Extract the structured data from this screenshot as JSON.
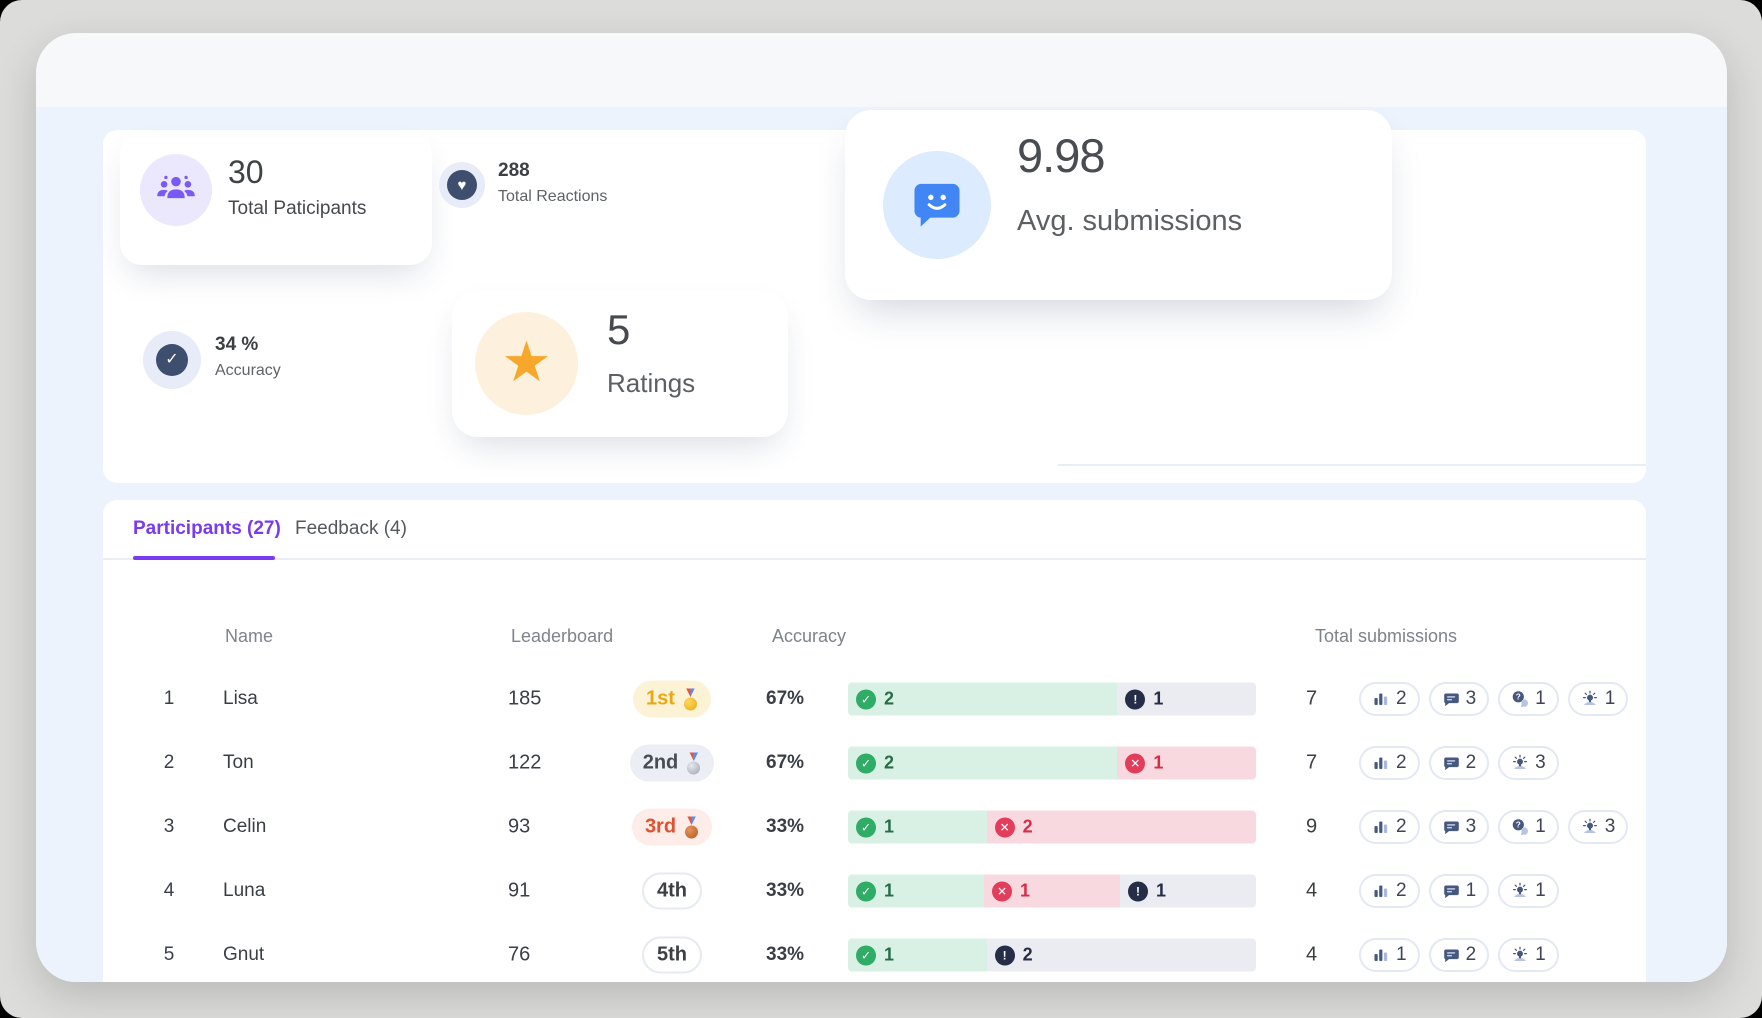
{
  "stats": {
    "participants": {
      "value": "30",
      "label": "Total Paticipants"
    },
    "reactions": {
      "value": "288",
      "label": "Total Reactions"
    },
    "avg_submissions": {
      "value": "9.98",
      "label": "Avg. submissions"
    },
    "accuracy": {
      "value": "34 %",
      "label": "Accuracy"
    },
    "ratings": {
      "value": "5",
      "label": "Ratings"
    }
  },
  "tabs": [
    {
      "label": "Participants (27)",
      "active": true
    },
    {
      "label": "Feedback (4)",
      "active": false
    }
  ],
  "table": {
    "headers": {
      "name": "Name",
      "leaderboard": "Leaderboard",
      "accuracy": "Accuracy",
      "total": "Total submissions"
    },
    "rows": [
      {
        "rank": "1",
        "name": "Lisa",
        "score": "185",
        "place": "1st",
        "medal": "gold",
        "accuracy": "67%",
        "segments": [
          {
            "type": "success",
            "count": "2",
            "flex": 2
          },
          {
            "type": "neutral",
            "count": "1",
            "flex": 1
          }
        ],
        "total": "7",
        "pills": [
          {
            "icon": "poll",
            "count": "2"
          },
          {
            "icon": "comment",
            "count": "3"
          },
          {
            "icon": "question",
            "count": "1"
          },
          {
            "icon": "idea",
            "count": "1"
          }
        ]
      },
      {
        "rank": "2",
        "name": "Ton",
        "score": "122",
        "place": "2nd",
        "medal": "silver",
        "accuracy": "67%",
        "segments": [
          {
            "type": "success",
            "count": "2",
            "flex": 2
          },
          {
            "type": "error",
            "count": "1",
            "flex": 1
          }
        ],
        "total": "7",
        "pills": [
          {
            "icon": "poll",
            "count": "2"
          },
          {
            "icon": "comment",
            "count": "2"
          },
          {
            "icon": "idea",
            "count": "3"
          }
        ]
      },
      {
        "rank": "3",
        "name": "Celin",
        "score": "93",
        "place": "3rd",
        "medal": "bronze",
        "accuracy": "33%",
        "segments": [
          {
            "type": "success",
            "count": "1",
            "flex": 1
          },
          {
            "type": "error",
            "count": "2",
            "flex": 2
          }
        ],
        "total": "9",
        "pills": [
          {
            "icon": "poll",
            "count": "2"
          },
          {
            "icon": "comment",
            "count": "3"
          },
          {
            "icon": "question",
            "count": "1"
          },
          {
            "icon": "idea",
            "count": "3"
          }
        ]
      },
      {
        "rank": "4",
        "name": "Luna",
        "score": "91",
        "place": "4th",
        "medal": null,
        "accuracy": "33%",
        "segments": [
          {
            "type": "success",
            "count": "1",
            "flex": 1
          },
          {
            "type": "error",
            "count": "1",
            "flex": 1
          },
          {
            "type": "neutral",
            "count": "1",
            "flex": 1
          }
        ],
        "total": "4",
        "pills": [
          {
            "icon": "poll",
            "count": "2"
          },
          {
            "icon": "comment",
            "count": "1"
          },
          {
            "icon": "idea",
            "count": "1"
          }
        ]
      },
      {
        "rank": "5",
        "name": "Gnut",
        "score": "76",
        "place": "5th",
        "medal": null,
        "accuracy": "33%",
        "segments": [
          {
            "type": "success",
            "count": "1",
            "flex": 1
          },
          {
            "type": "neutral",
            "count": "2",
            "flex": 2
          }
        ],
        "total": "4",
        "pills": [
          {
            "icon": "poll",
            "count": "1"
          },
          {
            "icon": "comment",
            "count": "2"
          },
          {
            "icon": "idea",
            "count": "1"
          }
        ]
      }
    ]
  },
  "colors": {
    "accent_purple": "#7a3bf0",
    "icon_purple": "#7a5af5",
    "navy": "#3d4e6e",
    "info_blue": "#4285f4",
    "star_orange": "#f7a72b",
    "success_green": "#2fac66",
    "error_red": "#e23e5c",
    "neutral_dark": "#252d47",
    "gold": "#eba812",
    "bronze": "#e0512f",
    "panel_blue": "#edf3fc"
  }
}
